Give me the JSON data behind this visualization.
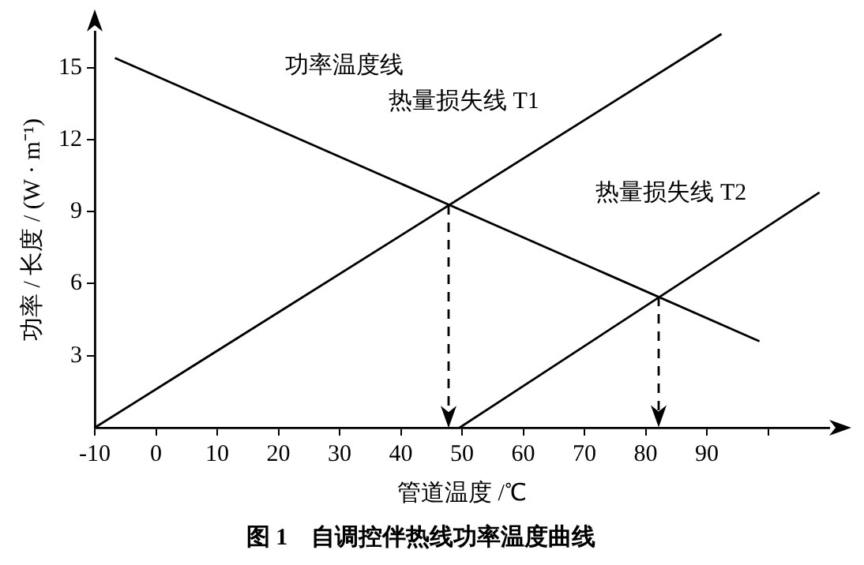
{
  "chart_data": {
    "type": "line",
    "title": "图 1    自调控伴热线功率温度曲线",
    "xlabel": "管道温度 /℃",
    "ylabel": "功率 / 长度 / (W · m⁻¹)",
    "xlim": [
      -10,
      110
    ],
    "xticks": [
      -10,
      0,
      10,
      20,
      30,
      40,
      50,
      60,
      70,
      80,
      90,
      {
        "value": 100,
        "label": null
      }
    ],
    "ylim": [
      0,
      16.5
    ],
    "yticks": [
      3,
      6,
      9,
      12,
      15
    ],
    "grid": false,
    "legend": false,
    "marker": "none",
    "series": [
      {
        "name": "功率温度线",
        "color": "#000000",
        "x": [
          -6.7,
          98.6
        ],
        "values": [
          15.4,
          3.6
        ]
      },
      {
        "name": "热量损失线 T1",
        "color": "#000000",
        "x": [
          -10,
          92.4
        ],
        "values": [
          0,
          16.4
        ]
      },
      {
        "name": "热量损失线 T2",
        "color": "#000000",
        "x": [
          49.6,
          108.4
        ],
        "values": [
          0,
          9.8
        ]
      }
    ]
  }
}
